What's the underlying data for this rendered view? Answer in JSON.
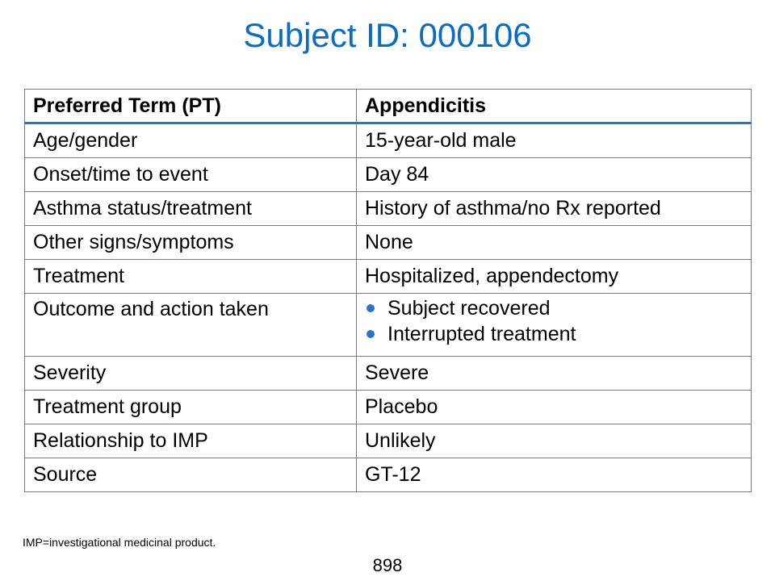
{
  "title": "Subject ID: 000106",
  "table": {
    "header": {
      "label": "Preferred Term (PT)",
      "value": "Appendicitis"
    },
    "rows": [
      {
        "label": "Age/gender",
        "value": "15-year-old male"
      },
      {
        "label": "Onset/time to event",
        "value": "Day 84"
      },
      {
        "label": "Asthma status/treatment",
        "value": "History of asthma/no Rx reported"
      },
      {
        "label": "Other signs/symptoms",
        "value": "None"
      },
      {
        "label": "Treatment",
        "value": "Hospitalized, appendectomy"
      },
      {
        "label": "Outcome and action taken",
        "bullets": [
          "Subject recovered",
          "Interrupted treatment"
        ]
      },
      {
        "label": "Severity",
        "value": "Severe"
      },
      {
        "label": "Treatment group",
        "value": "Placebo"
      },
      {
        "label": "Relationship to IMP",
        "value": "Unlikely"
      },
      {
        "label": "Source",
        "value": "GT-12"
      }
    ]
  },
  "footnote": "IMP=investigational medicinal product.",
  "page_number": "898",
  "colors": {
    "title": "#0b6cc4",
    "header_rule": "#2a76c6",
    "bullet": "#2a76c6",
    "border": "#7a7a7a"
  }
}
